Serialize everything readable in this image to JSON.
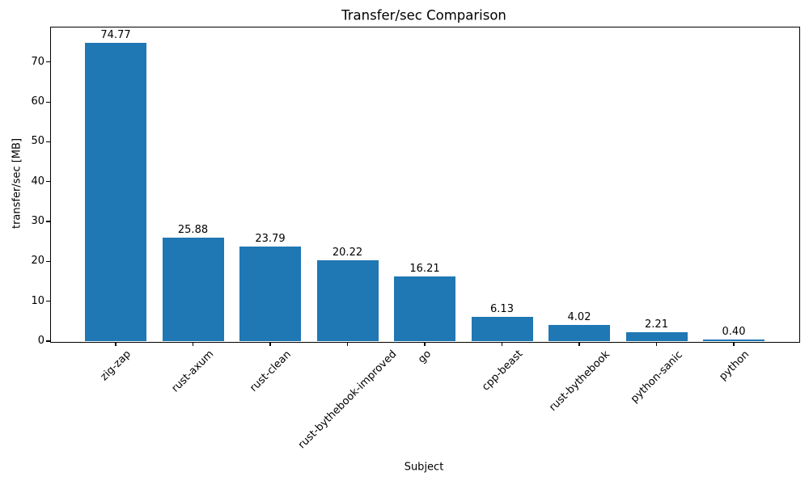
{
  "chart_data": {
    "type": "bar",
    "title": "Transfer/sec Comparison",
    "xlabel": "Subject",
    "ylabel": "transfer/sec [MB]",
    "categories": [
      "zig-zap",
      "rust-axum",
      "rust-clean",
      "rust-bythebook-improved",
      "go",
      "cpp-beast",
      "rust-bythebook",
      "python-sanic",
      "python"
    ],
    "values": [
      74.77,
      25.88,
      23.79,
      20.22,
      16.21,
      6.13,
      4.02,
      2.21,
      0.4
    ],
    "bar_value_labels": [
      "74.77",
      "25.88",
      "23.79",
      "20.22",
      "16.21",
      "6.13",
      "4.02",
      "2.21",
      "0.40"
    ],
    "yticks": [
      0,
      10,
      20,
      30,
      40,
      50,
      60,
      70
    ],
    "ylim": [
      0,
      78.9
    ],
    "grid": false,
    "legend": "none",
    "bar_color": "#1f77b4",
    "text_color": "#000000",
    "background_color": "#ffffff"
  }
}
